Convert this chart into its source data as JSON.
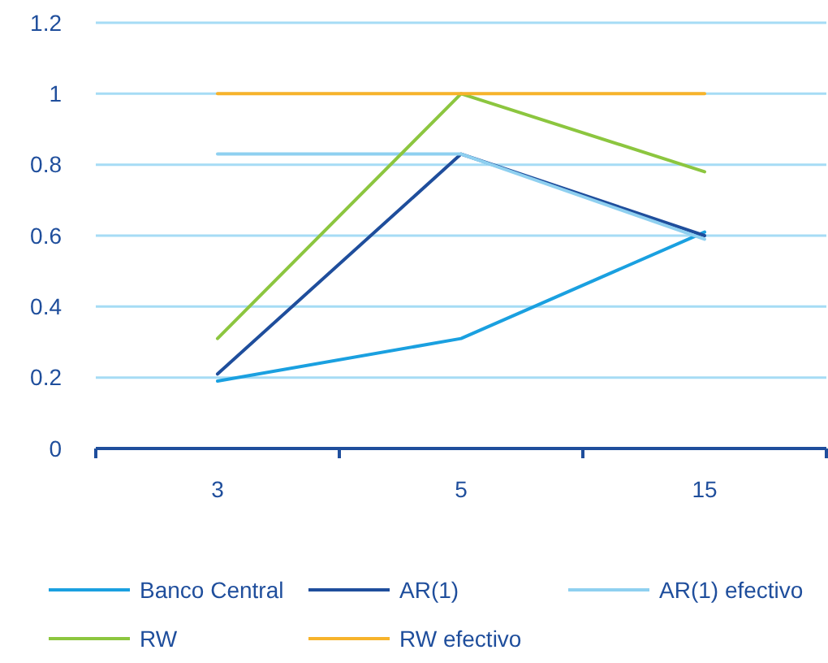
{
  "chart_data": {
    "type": "line",
    "categories": [
      "3",
      "5",
      "15"
    ],
    "series": [
      {
        "name": "Banco Central",
        "color": "#1aa0e0",
        "values": [
          0.19,
          0.31,
          0.61
        ]
      },
      {
        "name": "AR(1)",
        "color": "#1f4e9c",
        "values": [
          0.21,
          0.83,
          0.6
        ]
      },
      {
        "name": "AR(1) efectivo",
        "color": "#8fd0f0",
        "values": [
          0.83,
          0.83,
          0.59
        ]
      },
      {
        "name": "RW",
        "color": "#8cc63f",
        "values": [
          0.31,
          1.0,
          0.78
        ]
      },
      {
        "name": "RW efectivo",
        "color": "#f7b32b",
        "values": [
          1,
          1,
          1
        ]
      }
    ],
    "ylim": [
      0,
      1.2
    ],
    "yticks": [
      0,
      0.2,
      0.4,
      0.6,
      0.8,
      1,
      1.2
    ],
    "grid": "y",
    "legend": "bottom",
    "marker": "none",
    "line_style": "solid"
  }
}
